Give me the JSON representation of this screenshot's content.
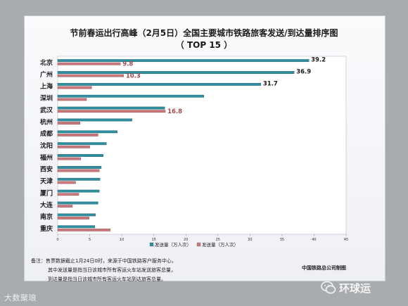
{
  "chart_data": {
    "type": "bar",
    "title": "节前春运出行高峰（2月5日）全国主要城市铁路旅客发送/到达量排序图",
    "subtitle": "（ TOP 15 ）",
    "categories": [
      "北京",
      "广州",
      "上海",
      "深圳",
      "武汉",
      "杭州",
      "成都",
      "沈阳",
      "福州",
      "西安",
      "天津",
      "厦门",
      "大连",
      "南京",
      "重庆"
    ],
    "series": [
      {
        "name": "发送量（万人次）",
        "color": "#2f8fa0",
        "values": [
          39.2,
          36.9,
          31.7,
          22.8,
          16.7,
          11.6,
          9.3,
          7.6,
          7.1,
          6.8,
          6.6,
          6.5,
          6.3,
          5.9,
          5.8
        ]
      },
      {
        "name": "发送量（万人次）",
        "color": "#c9787c",
        "values": [
          9.8,
          10.3,
          5.3,
          4.5,
          16.8,
          3.5,
          6.3,
          5.0,
          3.6,
          6.5,
          2.8,
          3.3,
          2.3,
          4.9,
          8.2
        ]
      }
    ],
    "data_labels": [
      {
        "category": "北京",
        "series": 0,
        "text": "39.2"
      },
      {
        "category": "北京",
        "series": 1,
        "text": "9.8"
      },
      {
        "category": "广州",
        "series": 0,
        "text": "36.9"
      },
      {
        "category": "广州",
        "series": 1,
        "text": "10.3"
      },
      {
        "category": "上海",
        "series": 0,
        "text": "31.7"
      },
      {
        "category": "武汉",
        "series": 1,
        "text": "16.8"
      }
    ],
    "xticks": [
      "0",
      "5",
      "10",
      "15",
      "20",
      "25",
      "30",
      "35",
      "40",
      "45"
    ],
    "xlim": [
      0,
      45
    ],
    "legend": "bottom",
    "grid": false
  },
  "notes": [
    "备注：售票数据截止1月24日0时，来源于中国铁路客户服务中心，",
    "其中发送量是指当日该城市所有客运火车站发送旅客总量，",
    "到达量是指当日该城市所有客运火车站到达旅客总量。"
  ],
  "source": "中国铁路总公司制图",
  "watermark_left": "大数聚琅",
  "watermark_right": "环球运"
}
